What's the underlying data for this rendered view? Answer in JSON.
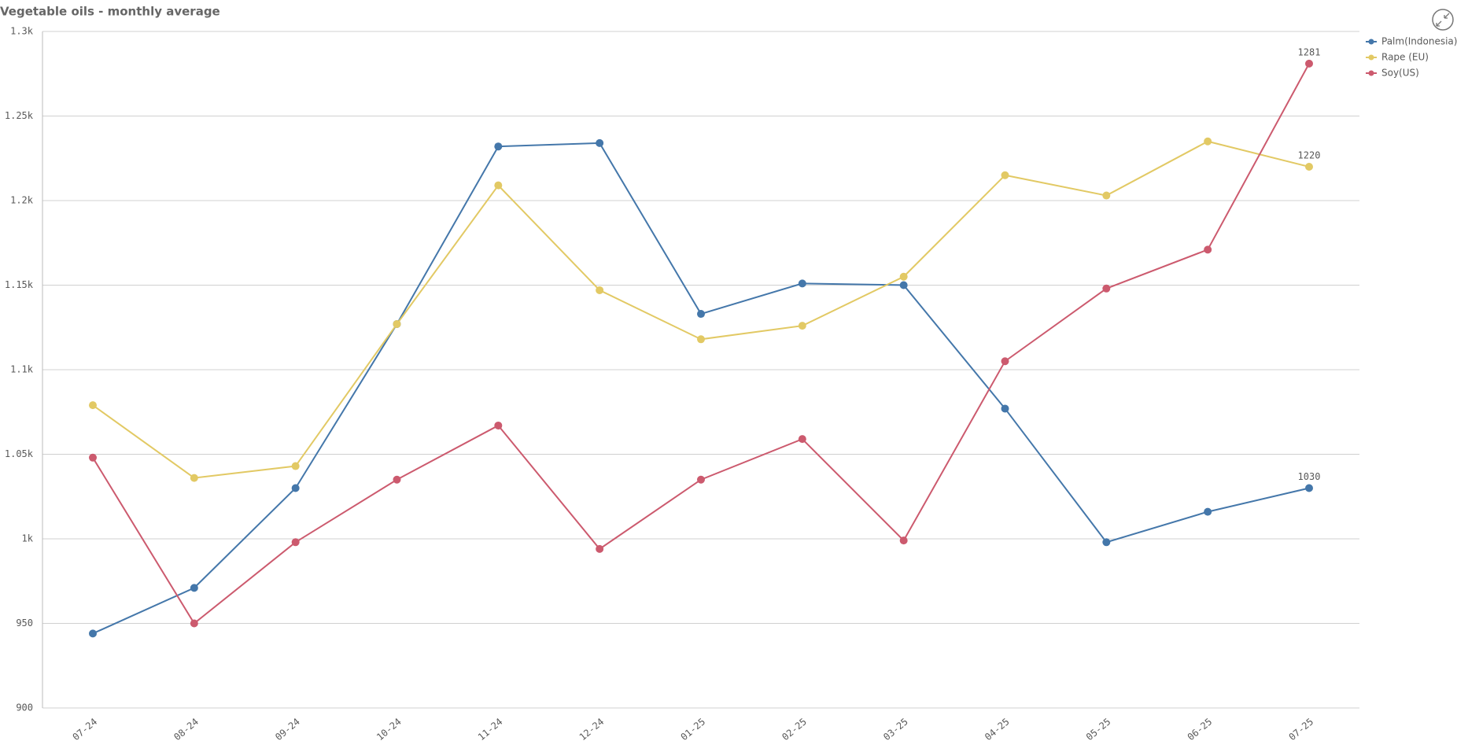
{
  "chart_data": {
    "type": "line",
    "title": "Vegetable oils - monthly average",
    "categories": [
      "07-24",
      "08-24",
      "09-24",
      "10-24",
      "11-24",
      "12-24",
      "01-25",
      "02-25",
      "03-25",
      "04-25",
      "05-25",
      "06-25",
      "07-25"
    ],
    "series": [
      {
        "name": "Palm(Indonesia)",
        "color": "#4477aa",
        "values": [
          944,
          971,
          1030,
          1127,
          1232,
          1234,
          1133,
          1151,
          1150,
          1077,
          998,
          1016,
          1030
        ]
      },
      {
        "name": "Rape (EU)",
        "color": "#e2c964",
        "values": [
          1079,
          1036,
          1043,
          1127,
          1209,
          1147,
          1118,
          1126,
          1155,
          1215,
          1203,
          1235,
          1220
        ]
      },
      {
        "name": "Soy(US)",
        "color": "#cc5a6e",
        "values": [
          1048,
          950,
          998,
          1035,
          1067,
          994,
          1035,
          1059,
          999,
          1105,
          1148,
          1171,
          1281
        ]
      }
    ],
    "ylim": [
      900,
      1300
    ],
    "yticks": [
      900,
      950,
      {
        "value": 1000,
        "label": "1k"
      },
      {
        "value": 1050,
        "label": "1.05k"
      },
      {
        "value": 1100,
        "label": "1.1k"
      },
      {
        "value": 1150,
        "label": "1.15k"
      },
      {
        "value": 1200,
        "label": "1.2k"
      },
      {
        "value": 1250,
        "label": "1.25k"
      },
      {
        "value": 1300,
        "label": "1.3k"
      }
    ],
    "grid": true,
    "legend": "top-right",
    "label_last_point": true
  }
}
